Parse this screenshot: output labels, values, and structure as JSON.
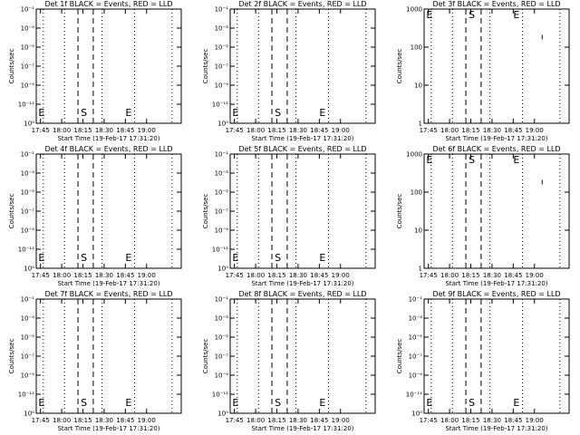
{
  "chart_data": [
    {
      "type": "line",
      "title": "Det 1f BLACK = Events, RED = LLD",
      "ylabel": "Counts/sec",
      "xlabel": "Start Time (19-Feb-17 17:31:20)",
      "y_scale": "log",
      "y_tick_labels": [
        "10⁰",
        "10⁻¹¹",
        "10⁻⁹",
        "10⁻⁷",
        "10⁻⁵",
        "10⁻³",
        "10⁻¹"
      ],
      "x_tick_labels": [
        "17:45",
        "18:00",
        "18:15",
        "18:30",
        "18:45",
        "19:00"
      ],
      "x_ticks_min": [
        0,
        15,
        30,
        45,
        60,
        75
      ],
      "xlim_min": [
        -3,
        99.5
      ],
      "dotted_lines_min": [
        -3,
        2,
        17,
        43.5,
        66.5,
        93
      ],
      "dashed_lines_min": [
        26.5,
        37.3
      ],
      "markers": [
        {
          "label": "E",
          "x_min": -1.5
        },
        {
          "label": "S",
          "x_min": 28.5
        },
        {
          "label": "E",
          "x_min": 60
        }
      ],
      "series": []
    },
    {
      "type": "line",
      "title": "Det 2f BLACK = Events, RED = LLD",
      "ylabel": "Counts/sec",
      "xlabel": "Start Time (19-Feb-17 17:31:20)",
      "y_scale": "log",
      "y_tick_labels": [
        "10⁰",
        "10⁻¹¹",
        "10⁻⁹",
        "10⁻⁷",
        "10⁻⁵",
        "10⁻³",
        "10⁻¹"
      ],
      "x_tick_labels": [
        "17:45",
        "18:00",
        "18:15",
        "18:30",
        "18:45",
        "19:00"
      ],
      "x_ticks_min": [
        0,
        15,
        30,
        45,
        60,
        75
      ],
      "xlim_min": [
        -3,
        99.5
      ],
      "dotted_lines_min": [
        -3,
        2,
        17,
        43.5,
        66.5,
        93
      ],
      "dashed_lines_min": [
        26.5,
        37.3
      ],
      "markers": [
        {
          "label": "E",
          "x_min": -1.5
        },
        {
          "label": "S",
          "x_min": 28.5
        },
        {
          "label": "E",
          "x_min": 60
        }
      ],
      "series": []
    },
    {
      "type": "line",
      "title": "Det 3f BLACK = Events, RED = LLD",
      "ylabel": "Counts/sec",
      "xlabel": "Start Time (19-Feb-17 17:31:20)",
      "y_scale": "log",
      "y_tick_labels": [
        "1",
        "10",
        "100",
        "1000"
      ],
      "x_tick_labels": [
        "17:45",
        "18:00",
        "18:15",
        "18:30",
        "18:45",
        "19:00"
      ],
      "x_ticks_min": [
        0,
        15,
        30,
        45,
        60,
        75
      ],
      "xlim_min": [
        -3,
        99.5
      ],
      "dotted_lines_min": [
        -3,
        2,
        17,
        43.5,
        66.5,
        93
      ],
      "dashed_lines_min": [
        26.5,
        37.3
      ],
      "markers": [
        {
          "label": "E",
          "x_min": -1.5
        },
        {
          "label": "S",
          "x_min": 28.5
        },
        {
          "label": "E",
          "x_min": 60
        }
      ],
      "series": [
        {
          "points": [
            [
              80.5,
              160
            ],
            [
              80.5,
              210
            ]
          ]
        }
      ]
    },
    {
      "type": "line",
      "title": "Det 4f BLACK = Events, RED = LLD",
      "ylabel": "Counts/sec",
      "xlabel": "Start Time (19-Feb-17 17:31:20)",
      "y_scale": "log",
      "y_tick_labels": [
        "10⁰",
        "10⁻¹¹",
        "10⁻⁹",
        "10⁻⁷",
        "10⁻⁵",
        "10⁻³",
        "10⁻¹"
      ],
      "x_tick_labels": [
        "17:45",
        "18:00",
        "18:15",
        "18:30",
        "18:45",
        "19:00"
      ],
      "x_ticks_min": [
        0,
        15,
        30,
        45,
        60,
        75
      ],
      "xlim_min": [
        -3,
        99.5
      ],
      "dotted_lines_min": [
        -3,
        2,
        17,
        43.5,
        66.5,
        93
      ],
      "dashed_lines_min": [
        26.5,
        37.3
      ],
      "markers": [
        {
          "label": "E",
          "x_min": -1.5
        },
        {
          "label": "S",
          "x_min": 28.5
        },
        {
          "label": "E",
          "x_min": 60
        }
      ],
      "series": []
    },
    {
      "type": "line",
      "title": "Det 5f BLACK = Events, RED = LLD",
      "ylabel": "Counts/sec",
      "xlabel": "Start Time (19-Feb-17 17:31:20)",
      "y_scale": "log",
      "y_tick_labels": [
        "10⁰",
        "10⁻¹¹",
        "10⁻⁹",
        "10⁻⁷",
        "10⁻⁵",
        "10⁻³",
        "10⁻¹"
      ],
      "x_tick_labels": [
        "17:45",
        "18:00",
        "18:15",
        "18:30",
        "18:45",
        "19:00"
      ],
      "x_ticks_min": [
        0,
        15,
        30,
        45,
        60,
        75
      ],
      "xlim_min": [
        -3,
        99.5
      ],
      "dotted_lines_min": [
        -3,
        2,
        17,
        43.5,
        66.5,
        93
      ],
      "dashed_lines_min": [
        26.5,
        37.3
      ],
      "markers": [
        {
          "label": "E",
          "x_min": -1.5
        },
        {
          "label": "S",
          "x_min": 28.5
        },
        {
          "label": "E",
          "x_min": 60
        }
      ],
      "series": []
    },
    {
      "type": "line",
      "title": "Det 6f BLACK = Events, RED = LLD",
      "ylabel": "Counts/sec",
      "xlabel": "Start Time (19-Feb-17 17:31:20)",
      "y_scale": "log",
      "y_tick_labels": [
        "1",
        "10",
        "100",
        "1000"
      ],
      "x_tick_labels": [
        "17:45",
        "18:00",
        "18:15",
        "18:30",
        "18:45",
        "19:00"
      ],
      "x_ticks_min": [
        0,
        15,
        30,
        45,
        60,
        75
      ],
      "xlim_min": [
        -3,
        99.5
      ],
      "dotted_lines_min": [
        -3,
        2,
        17,
        43.5,
        66.5,
        93
      ],
      "dashed_lines_min": [
        26.5,
        37.3
      ],
      "markers": [
        {
          "label": "E",
          "x_min": -1.5
        },
        {
          "label": "S",
          "x_min": 28.5
        },
        {
          "label": "E",
          "x_min": 60
        }
      ],
      "series": [
        {
          "points": [
            [
              80.5,
              160
            ],
            [
              80.5,
              210
            ]
          ]
        }
      ]
    },
    {
      "type": "line",
      "title": "Det 7f BLACK = Events, RED = LLD",
      "ylabel": "Counts/sec",
      "xlabel": "Start Time (19-Feb-17 17:31:20)",
      "y_scale": "log",
      "y_tick_labels": [
        "10⁰",
        "10⁻¹¹",
        "10⁻⁹",
        "10⁻⁷",
        "10⁻⁵",
        "10⁻³",
        "10⁻¹"
      ],
      "x_tick_labels": [
        "17:45",
        "18:00",
        "18:15",
        "18:30",
        "18:45",
        "19:00"
      ],
      "x_ticks_min": [
        0,
        15,
        30,
        45,
        60,
        75
      ],
      "xlim_min": [
        -3,
        99.5
      ],
      "dotted_lines_min": [
        -3,
        2,
        17,
        43.5,
        66.5,
        93
      ],
      "dashed_lines_min": [
        26.5,
        37.3
      ],
      "markers": [
        {
          "label": "E",
          "x_min": -1.5
        },
        {
          "label": "S",
          "x_min": 28.5
        },
        {
          "label": "E",
          "x_min": 60
        }
      ],
      "series": []
    },
    {
      "type": "line",
      "title": "Det 8f BLACK = Events, RED = LLD",
      "ylabel": "Counts/sec",
      "xlabel": "Start Time (19-Feb-17 17:31:20)",
      "y_scale": "log",
      "y_tick_labels": [
        "10⁰",
        "10⁻¹¹",
        "10⁻⁹",
        "10⁻⁷",
        "10⁻⁵",
        "10⁻³",
        "10⁻¹"
      ],
      "x_tick_labels": [
        "17:45",
        "18:00",
        "18:15",
        "18:30",
        "18:45",
        "19:00"
      ],
      "x_ticks_min": [
        0,
        15,
        30,
        45,
        60,
        75
      ],
      "xlim_min": [
        -3,
        99.5
      ],
      "dotted_lines_min": [
        -3,
        2,
        17,
        43.5,
        66.5,
        93
      ],
      "dashed_lines_min": [
        26.5,
        37.3
      ],
      "markers": [
        {
          "label": "E",
          "x_min": -1.5
        },
        {
          "label": "S",
          "x_min": 28.5
        },
        {
          "label": "E",
          "x_min": 60
        }
      ],
      "series": []
    },
    {
      "type": "line",
      "title": "Det 9f BLACK = Events, RED = LLD",
      "ylabel": "Counts/sec",
      "xlabel": "Start Time (19-Feb-17 17:31:20)",
      "y_scale": "log",
      "y_tick_labels": [
        "10⁰",
        "10⁻¹¹",
        "10⁻⁹",
        "10⁻⁷",
        "10⁻⁵",
        "10⁻³",
        "10⁻¹"
      ],
      "x_tick_labels": [
        "17:45",
        "18:00",
        "18:15",
        "18:30",
        "18:45",
        "19:00"
      ],
      "x_ticks_min": [
        0,
        15,
        30,
        45,
        60,
        75
      ],
      "xlim_min": [
        -3,
        99.5
      ],
      "dotted_lines_min": [
        -3,
        2,
        17,
        43.5,
        66.5,
        93
      ],
      "dashed_lines_min": [
        26.5,
        37.3
      ],
      "markers": [
        {
          "label": "E",
          "x_min": -1.5
        },
        {
          "label": "S",
          "x_min": 28.5
        },
        {
          "label": "E",
          "x_min": 60
        }
      ],
      "series": []
    }
  ]
}
